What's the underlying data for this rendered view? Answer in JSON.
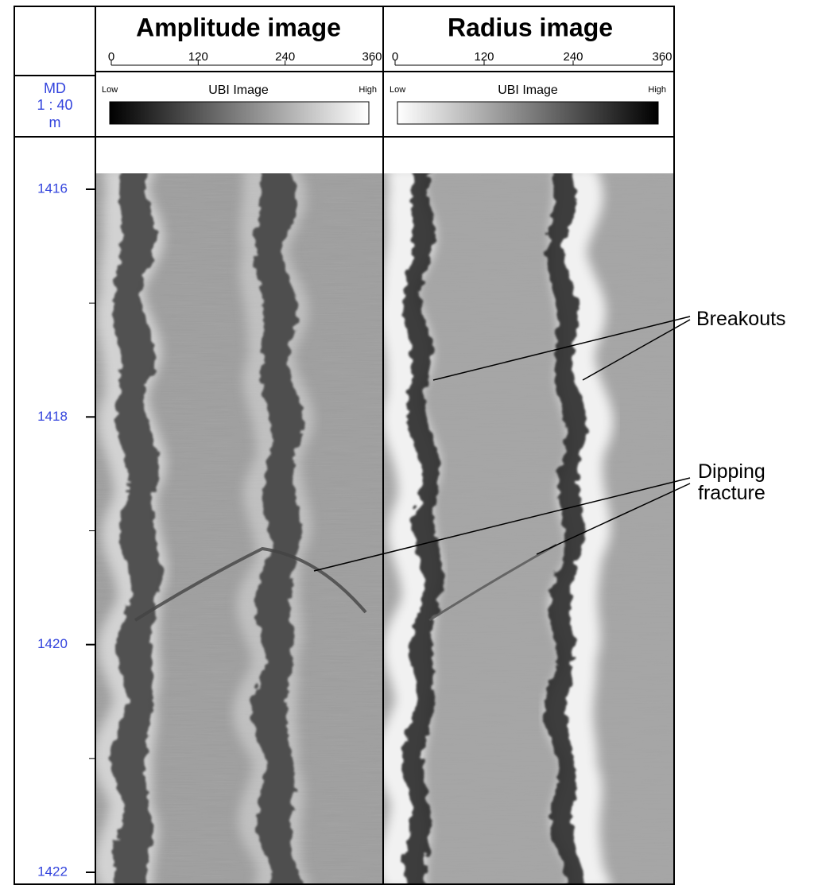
{
  "panels": [
    {
      "title": "Amplitude image",
      "scale_ticks": [
        0,
        120,
        240,
        360
      ],
      "legend": {
        "low": "Low",
        "label": "UBI Image",
        "high": "High"
      }
    },
    {
      "title": "Radius image",
      "scale_ticks": [
        0,
        120,
        240,
        360
      ],
      "legend": {
        "low": "Low",
        "label": "UBI Image",
        "high": "High"
      }
    }
  ],
  "depth_track": {
    "header": [
      "MD",
      "1 : 40",
      "m"
    ],
    "depth_labels": [
      1416,
      1418,
      1420,
      1422
    ]
  },
  "annotations": [
    "Breakouts",
    "Dipping fracture"
  ]
}
